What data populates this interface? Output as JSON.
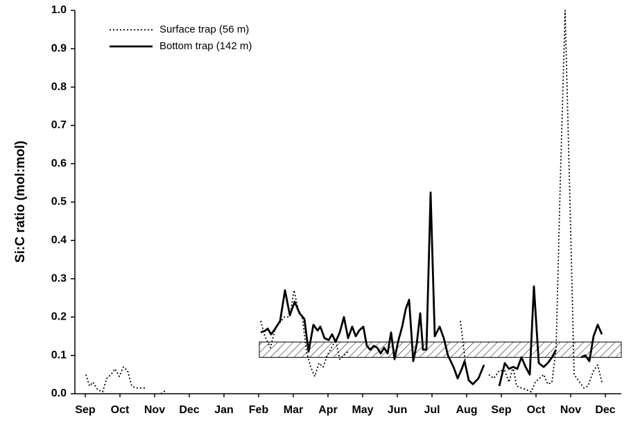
{
  "chart_data": {
    "type": "line",
    "y_label": "Si:C ratio (mol:mol)",
    "xlim": [
      -0.3,
      15.46
    ],
    "ylim": [
      0,
      1
    ],
    "yticks": [
      {
        "value": 0,
        "label": "0.0"
      },
      {
        "value": 0.1,
        "label": "0.1"
      },
      {
        "value": 0.2,
        "label": "0.2"
      },
      {
        "value": 0.3,
        "label": "0.3"
      },
      {
        "value": 0.4,
        "label": "0.4"
      },
      {
        "value": 0.5,
        "label": "0.5"
      },
      {
        "value": 0.6,
        "label": "0.6"
      },
      {
        "value": 0.7,
        "label": "0.7"
      },
      {
        "value": 0.8,
        "label": "0.8"
      },
      {
        "value": 0.9,
        "label": "0.9"
      },
      {
        "value": 1,
        "label": "1.0"
      }
    ],
    "xticks": [
      {
        "value": 0,
        "label": "Sep"
      },
      {
        "value": 1,
        "label": "Oct"
      },
      {
        "value": 2,
        "label": "Nov"
      },
      {
        "value": 3,
        "label": "Dec"
      },
      {
        "value": 4,
        "label": "Jan"
      },
      {
        "value": 5,
        "label": "Feb"
      },
      {
        "value": 6,
        "label": "Mar"
      },
      {
        "value": 7,
        "label": "Apr"
      },
      {
        "value": 8,
        "label": "May"
      },
      {
        "value": 9,
        "label": "Jun"
      },
      {
        "value": 10,
        "label": "Jul"
      },
      {
        "value": 11,
        "label": "Aug"
      },
      {
        "value": 12,
        "label": "Sep"
      },
      {
        "value": 13,
        "label": "Oct"
      },
      {
        "value": 14,
        "label": "Nov"
      },
      {
        "value": 15,
        "label": "Dec"
      }
    ],
    "reference_band": {
      "x": [
        5.02,
        15.46
      ],
      "y": [
        0.095,
        0.135
      ]
    },
    "legend": "upper left",
    "series": [
      {
        "name": "Surface trap (56 m)",
        "color": "#000000",
        "dash": "dotted",
        "x": [
          0.02,
          0.12,
          0.22,
          0.36,
          0.5,
          0.62,
          0.74,
          0.86,
          0.98,
          1.1,
          1.22,
          1.34,
          1.46,
          1.62,
          1.74,
          null,
          2.18,
          2.34,
          null,
          5.06,
          5.18,
          5.34,
          5.48,
          5.74,
          5.9,
          6.02,
          6.14,
          6.26,
          6.38,
          6.5,
          6.62,
          6.74,
          6.86,
          6.98,
          7.1,
          7.22,
          7.34,
          7.46,
          7.58,
          null,
          10.82,
          10.9,
          10.98,
          11.06,
          null,
          11.64,
          11.78,
          11.94,
          12.1,
          12.22,
          12.34,
          12.44,
          12.58,
          12.74,
          12.86,
          12.98,
          13.1,
          13.22,
          13.34,
          13.46,
          13.58,
          13.7,
          13.84,
          13.98,
          14.1,
          14.26,
          14.38,
          14.5,
          14.66,
          14.78,
          14.9
        ],
        "values": [
          0.05,
          0.02,
          0.03,
          0.01,
          0.005,
          0.04,
          0.05,
          0.065,
          0.045,
          0.07,
          0.06,
          0.02,
          0.015,
          0.015,
          0.015,
          null,
          0,
          0.01,
          null,
          0.19,
          0.15,
          0.12,
          0.17,
          0.2,
          0.2,
          0.27,
          0.22,
          0.2,
          0.11,
          0.07,
          0.045,
          0.08,
          0.07,
          0.1,
          0.12,
          0.14,
          0.09,
          0.1,
          0.11,
          null,
          0.19,
          0.13,
          0.07,
          0.03,
          null,
          0.05,
          0.04,
          0.06,
          0.06,
          0.03,
          0.07,
          0.02,
          0.015,
          0.01,
          0.005,
          0.03,
          0.04,
          0.05,
          0.025,
          0.03,
          0.12,
          0.55,
          1.0,
          0.5,
          0.05,
          0.03,
          0.015,
          0.02,
          0.06,
          0.075,
          0.03
        ]
      },
      {
        "name": "Bottom trap (142 m)",
        "color": "#000000",
        "dash": "solid",
        "x": [
          5.06,
          5.2,
          5.26,
          5.36,
          5.48,
          5.62,
          5.76,
          5.9,
          6.04,
          6.18,
          6.32,
          6.44,
          6.58,
          6.7,
          6.78,
          6.9,
          7.02,
          7.12,
          7.22,
          7.34,
          7.46,
          7.58,
          7.7,
          7.8,
          7.9,
          8.02,
          8.12,
          8.22,
          8.32,
          8.42,
          8.52,
          8.62,
          8.72,
          8.82,
          8.92,
          9.02,
          9.14,
          9.24,
          9.34,
          9.46,
          9.56,
          9.66,
          9.74,
          9.84,
          9.96,
          10.08,
          10.22,
          10.34,
          10.46,
          10.62,
          10.74,
          10.86,
          10.94,
          11.06,
          11.18,
          11.34,
          11.5,
          null,
          11.94,
          12.1,
          12.22,
          12.34,
          12.46,
          12.58,
          12.7,
          12.82,
          12.94,
          13.08,
          13.22,
          13.34,
          13.46,
          13.58,
          null,
          14.3,
          14.42,
          14.54,
          14.66,
          14.78,
          14.9
        ],
        "values": [
          0.16,
          0.165,
          0.17,
          0.155,
          0.17,
          0.19,
          0.27,
          0.205,
          0.24,
          0.21,
          0.195,
          0.11,
          0.18,
          0.165,
          0.175,
          0.145,
          0.14,
          0.155,
          0.135,
          0.16,
          0.2,
          0.145,
          0.175,
          0.15,
          0.165,
          0.175,
          0.125,
          0.115,
          0.125,
          0.12,
          0.105,
          0.12,
          0.105,
          0.16,
          0.09,
          0.135,
          0.175,
          0.22,
          0.245,
          0.085,
          0.13,
          0.21,
          0.115,
          0.115,
          0.525,
          0.15,
          0.175,
          0.145,
          0.1,
          0.07,
          0.04,
          0.065,
          0.085,
          0.035,
          0.025,
          0.04,
          0.075,
          null,
          0.02,
          0.08,
          0.065,
          0.07,
          0.065,
          0.095,
          0.07,
          0.05,
          0.28,
          0.08,
          0.07,
          0.08,
          0.095,
          0.115,
          null,
          0.095,
          0.1,
          0.085,
          0.15,
          0.18,
          0.155
        ]
      }
    ]
  }
}
